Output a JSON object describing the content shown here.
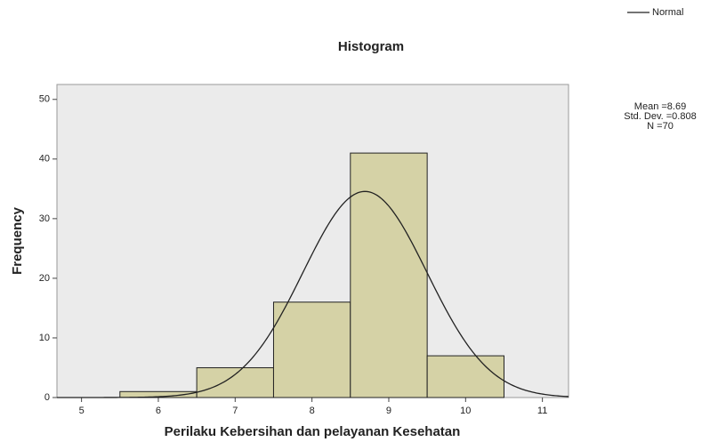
{
  "chart_data": {
    "type": "histogram",
    "title": "Histogram",
    "x_label": "Perilaku Kebersihan dan pelayanan Kesehatan",
    "y_label": "Frequency",
    "bins": [
      5.5,
      6.5,
      7.5,
      8.5,
      9.5,
      10.5
    ],
    "counts": [
      1,
      5,
      16,
      41,
      7
    ],
    "color": "#d5d2a6",
    "xlim": [
      4.68,
      11.34
    ],
    "ylim": [
      0,
      52.5
    ],
    "xticks": [
      5,
      6,
      7,
      8,
      9,
      10,
      11
    ],
    "yticks": [
      0,
      10,
      20,
      30,
      40,
      50
    ],
    "curve": {
      "name": "Normal",
      "color": "#222222"
    },
    "legend": "top-right",
    "mean": {
      "value": 8.69,
      "label": "Mean =8.69"
    },
    "std_dev": {
      "value": 0.808,
      "label": "Std. Dev. =0.808"
    },
    "n": {
      "value": 70,
      "label": "N =70"
    }
  }
}
